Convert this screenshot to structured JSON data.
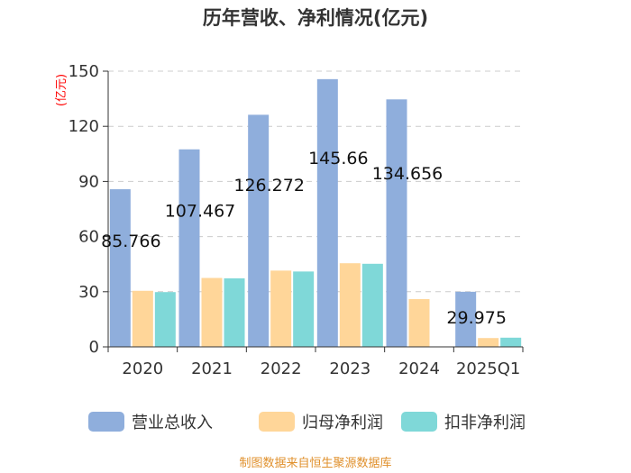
{
  "chart_data": {
    "type": "bar",
    "title": "历年营收、净利情况(亿元)",
    "ylabel": "(亿元)",
    "xlabel": "",
    "ylim": [
      0,
      150
    ],
    "yticks": [
      0,
      30,
      60,
      90,
      120,
      150
    ],
    "grid": true,
    "categories": [
      "2020",
      "2021",
      "2022",
      "2023",
      "2024",
      "2025Q1"
    ],
    "series": [
      {
        "name": "营业总收入",
        "color": "#8faedc",
        "values": [
          85.766,
          107.467,
          126.272,
          145.66,
          134.656,
          29.975
        ]
      },
      {
        "name": "归母净利润",
        "color": "#ffd699",
        "values": [
          30.5,
          37.5,
          41.5,
          45.5,
          26.0,
          4.8
        ]
      },
      {
        "name": "扣非净利润",
        "color": "#7fd8d8",
        "values": [
          29.8,
          37.3,
          41.0,
          45.2,
          null,
          5.0
        ]
      }
    ],
    "data_labels": [
      "85.766",
      "107.467",
      "126.272",
      "145.66",
      "134.656",
      "29.975"
    ],
    "legend_position": "bottom"
  },
  "source_text": "制图数据来自恒生聚源数据库"
}
